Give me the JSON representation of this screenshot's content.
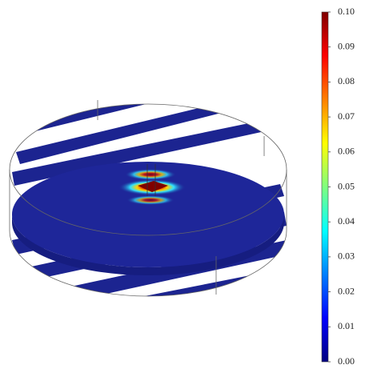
{
  "chart_data": {
    "type": "slice",
    "colormap": "jet",
    "zlim": [
      0,
      0.1
    ],
    "zticks": [
      {
        "value": 0,
        "label": "0.00"
      },
      {
        "value": 0.01,
        "label": "0.01"
      },
      {
        "value": 0.02,
        "label": "0.02"
      },
      {
        "value": 0.03,
        "label": "0.03"
      },
      {
        "value": 0.04,
        "label": "0.04"
      },
      {
        "value": 0.05,
        "label": "0.05"
      },
      {
        "value": 0.06,
        "label": "0.06"
      },
      {
        "value": 0.07,
        "label": "0.07"
      },
      {
        "value": 0.08,
        "label": "0.08"
      },
      {
        "value": 0.09,
        "label": "0.09"
      },
      {
        "value": 0.1,
        "label": "0.10"
      }
    ]
  }
}
